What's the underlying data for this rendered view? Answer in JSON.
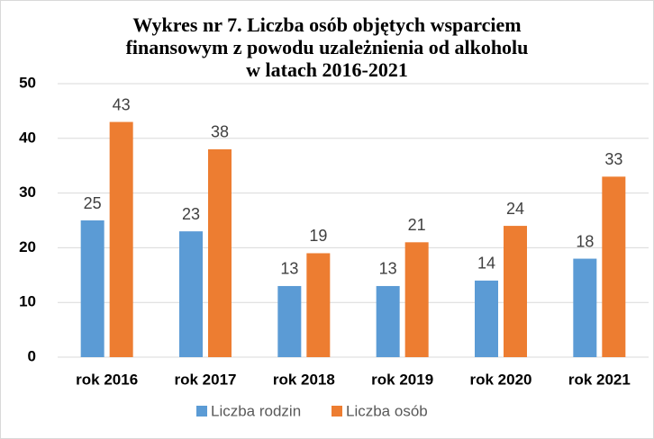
{
  "chart_data": {
    "type": "bar",
    "title": [
      "Wykres nr 7. Liczba osób objętych wsparciem",
      "finansowym z powodu uzależnienia od alkoholu",
      "w latach 2016-2021"
    ],
    "categories": [
      "rok 2016",
      "rok 2017",
      "rok 2018",
      "rok 2019",
      "rok 2020",
      "rok 2021"
    ],
    "series": [
      {
        "name": "Liczba  rodzin",
        "color": "#5b9bd5",
        "values": [
          25,
          23,
          13,
          13,
          14,
          18
        ]
      },
      {
        "name": "Liczba osób",
        "color": "#ed7d31",
        "values": [
          43,
          38,
          19,
          21,
          24,
          33
        ]
      }
    ],
    "ylim": [
      0,
      50
    ],
    "yticks": [
      0,
      10,
      20,
      30,
      40,
      50
    ],
    "grid": true,
    "legend": "bottom"
  }
}
